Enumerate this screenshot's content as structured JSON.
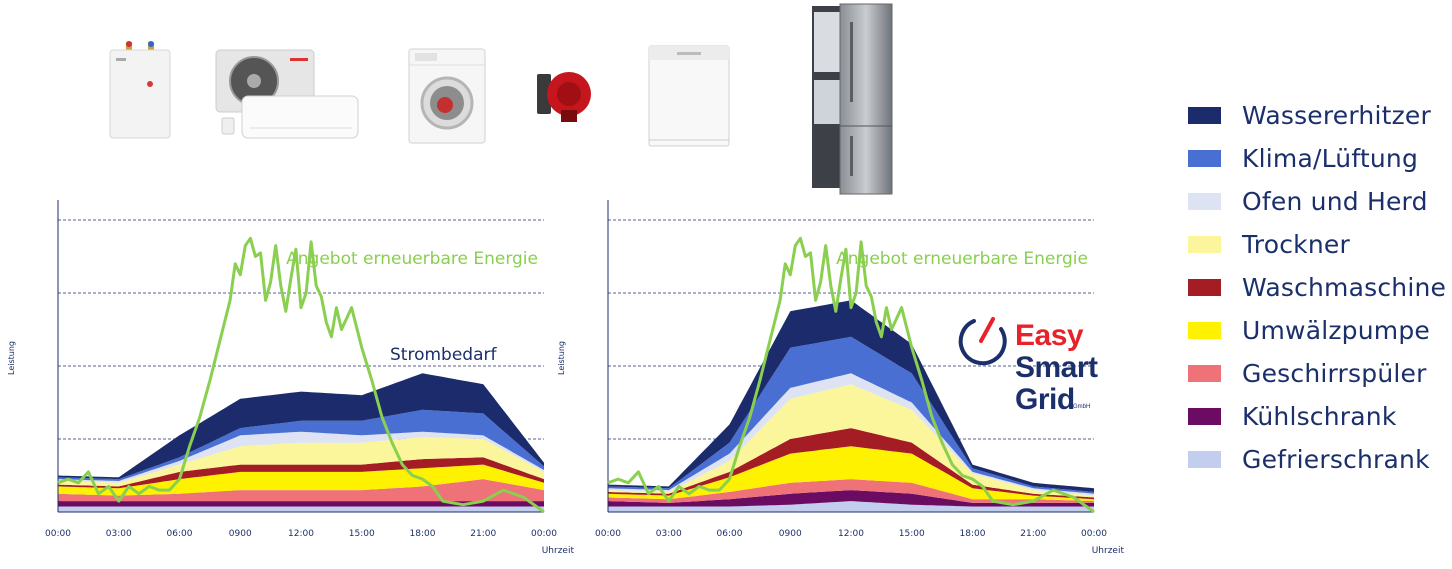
{
  "legend": [
    {
      "label": "Wassererhitzer",
      "color": "#1b2b6b"
    },
    {
      "label": "Klima/Lüftung",
      "color": "#4a6fd2"
    },
    {
      "label": "Ofen und Herd",
      "color": "#dde3f3"
    },
    {
      "label": "Trockner",
      "color": "#fbf59c"
    },
    {
      "label": "Waschmaschine",
      "color": "#a51d24"
    },
    {
      "label": "Umwälzpumpe",
      "color": "#fff200"
    },
    {
      "label": "Geschirrspüler",
      "color": "#ee7278"
    },
    {
      "label": "Kühlschrank",
      "color": "#6b0b62"
    },
    {
      "label": "Gefrierschrank",
      "color": "#c3cdee"
    }
  ],
  "appliances": [
    {
      "name": "Wassererhitzer",
      "icon": "water-heater-icon"
    },
    {
      "name": "Klima/Lüftung",
      "icon": "air-conditioner-icon"
    },
    {
      "name": "Waschmaschine",
      "icon": "washing-machine-icon"
    },
    {
      "name": "Umwälzpumpe",
      "icon": "circulation-pump-icon"
    },
    {
      "name": "Geschirrspüler",
      "icon": "dishwasher-icon"
    },
    {
      "name": "Kühlschrank",
      "icon": "fridge-freezer-icon"
    }
  ],
  "logo": {
    "line1": "Easy",
    "line2": "Smart",
    "line3": "Grid",
    "suffix": "GmbH",
    "accent": "#e8222a",
    "dark": "#1b2f6b"
  },
  "renewable_color": "#8acf4f",
  "chart_data": [
    {
      "type": "area",
      "stacked": true,
      "ylabel": "Leistung",
      "xlabel": "Uhrzeit",
      "x_ticks": [
        "00:00",
        "03:00",
        "06:00",
        "0900",
        "12:00",
        "15:00",
        "18:00",
        "21:00",
        "00:00"
      ],
      "x_hours": [
        0,
        3,
        6,
        9,
        12,
        15,
        18,
        21,
        24
      ],
      "ylim": [
        0,
        8
      ],
      "y_gridlines": [
        2,
        4,
        6,
        8
      ],
      "grid": true,
      "annotations": [
        "Angebot erneuerbare Energie",
        "Strombedarf"
      ],
      "series": [
        {
          "name": "Gefrierschrank",
          "x": [
            0,
            3,
            6,
            9,
            12,
            15,
            18,
            21,
            24
          ],
          "values": [
            0.15,
            0.15,
            0.15,
            0.15,
            0.15,
            0.15,
            0.15,
            0.15,
            0.15
          ]
        },
        {
          "name": "Kühlschrank",
          "x": [
            0,
            3,
            6,
            9,
            12,
            15,
            18,
            21,
            24
          ],
          "values": [
            0.15,
            0.15,
            0.15,
            0.15,
            0.15,
            0.15,
            0.15,
            0.15,
            0.15
          ]
        },
        {
          "name": "Geschirrspüler",
          "x": [
            0,
            3,
            6,
            9,
            12,
            15,
            18,
            21,
            24
          ],
          "values": [
            0.2,
            0.15,
            0.2,
            0.3,
            0.3,
            0.3,
            0.4,
            0.6,
            0.3
          ]
        },
        {
          "name": "Umwälzpumpe",
          "x": [
            0,
            3,
            6,
            9,
            12,
            15,
            18,
            21,
            24
          ],
          "values": [
            0.2,
            0.2,
            0.4,
            0.5,
            0.5,
            0.5,
            0.5,
            0.4,
            0.2
          ]
        },
        {
          "name": "Waschmaschine",
          "x": [
            0,
            3,
            6,
            9,
            12,
            15,
            18,
            21,
            24
          ],
          "values": [
            0.05,
            0.05,
            0.2,
            0.2,
            0.2,
            0.2,
            0.25,
            0.2,
            0.1
          ]
        },
        {
          "name": "Trockner",
          "x": [
            0,
            3,
            6,
            9,
            12,
            15,
            18,
            21,
            24
          ],
          "values": [
            0.1,
            0.1,
            0.2,
            0.5,
            0.6,
            0.6,
            0.6,
            0.5,
            0.2
          ]
        },
        {
          "name": "Ofen und Herd",
          "x": [
            0,
            3,
            6,
            9,
            12,
            15,
            18,
            21,
            24
          ],
          "values": [
            0.05,
            0.05,
            0.1,
            0.3,
            0.3,
            0.2,
            0.15,
            0.1,
            0.05
          ]
        },
        {
          "name": "Klima/Lüftung",
          "x": [
            0,
            3,
            6,
            9,
            12,
            15,
            18,
            21,
            24
          ],
          "values": [
            0.05,
            0.05,
            0.1,
            0.2,
            0.3,
            0.4,
            0.6,
            0.6,
            0.1
          ]
        },
        {
          "name": "Wassererhitzer",
          "x": [
            0,
            3,
            6,
            9,
            12,
            15,
            18,
            21,
            24
          ],
          "values": [
            0.05,
            0.05,
            0.6,
            0.8,
            0.8,
            0.7,
            1.0,
            0.8,
            0.1
          ]
        }
      ],
      "renewable": {
        "name": "Angebot erneuerbare Energie",
        "x": [
          0,
          0.5,
          1,
          1.5,
          2,
          2.5,
          3,
          3.5,
          4,
          4.5,
          5,
          5.5,
          6,
          6.5,
          7,
          7.5,
          8,
          8.5,
          8.75,
          9,
          9.25,
          9.5,
          9.75,
          10,
          10.25,
          10.5,
          10.75,
          11,
          11.25,
          11.5,
          11.75,
          12,
          12.25,
          12.5,
          12.75,
          13,
          13.25,
          13.5,
          13.75,
          14,
          14.5,
          15,
          15.5,
          16,
          16.5,
          17,
          17.5,
          18,
          18.5,
          19,
          20,
          21,
          22,
          23,
          24
        ],
        "values": [
          0.8,
          0.9,
          0.8,
          1.1,
          0.5,
          0.7,
          0.3,
          0.7,
          0.5,
          0.7,
          0.6,
          0.6,
          0.9,
          1.8,
          2.6,
          3.6,
          4.7,
          5.8,
          6.8,
          6.5,
          7.3,
          7.5,
          7.0,
          7.1,
          5.8,
          6.3,
          7.3,
          6.2,
          5.5,
          6.4,
          7.2,
          5.6,
          6.0,
          7.4,
          6.2,
          5.9,
          5.2,
          4.8,
          5.6,
          5.0,
          5.6,
          4.5,
          3.6,
          2.6,
          1.9,
          1.3,
          1.0,
          0.9,
          0.7,
          0.3,
          0.2,
          0.3,
          0.6,
          0.4,
          0.0
        ]
      }
    },
    {
      "type": "area",
      "stacked": true,
      "ylabel": "Leistung",
      "xlabel": "Uhrzeit",
      "x_ticks": [
        "00:00",
        "03:00",
        "06:00",
        "0900",
        "12:00",
        "15:00",
        "18:00",
        "21:00",
        "00:00"
      ],
      "x_hours": [
        0,
        3,
        6,
        9,
        12,
        15,
        18,
        21,
        24
      ],
      "ylim": [
        0,
        8
      ],
      "y_gridlines": [
        2,
        4,
        6,
        8
      ],
      "grid": true,
      "annotations": [
        "Angebot erneuerbare Energie"
      ],
      "series": [
        {
          "name": "Gefrierschrank",
          "x": [
            0,
            3,
            6,
            9,
            12,
            15,
            18,
            21,
            24
          ],
          "values": [
            0.15,
            0.15,
            0.15,
            0.2,
            0.3,
            0.2,
            0.15,
            0.15,
            0.15
          ]
        },
        {
          "name": "Kühlschrank",
          "x": [
            0,
            3,
            6,
            9,
            12,
            15,
            18,
            21,
            24
          ],
          "values": [
            0.15,
            0.1,
            0.2,
            0.3,
            0.3,
            0.3,
            0.1,
            0.1,
            0.1
          ]
        },
        {
          "name": "Geschirrspüler",
          "x": [
            0,
            3,
            6,
            9,
            12,
            15,
            18,
            21,
            24
          ],
          "values": [
            0.1,
            0.1,
            0.2,
            0.3,
            0.3,
            0.3,
            0.1,
            0.1,
            0.05
          ]
        },
        {
          "name": "Umwälzpumpe",
          "x": [
            0,
            3,
            6,
            9,
            12,
            15,
            18,
            21,
            24
          ],
          "values": [
            0.1,
            0.1,
            0.4,
            0.8,
            0.9,
            0.8,
            0.3,
            0.1,
            0.05
          ]
        },
        {
          "name": "Waschmaschine",
          "x": [
            0,
            3,
            6,
            9,
            12,
            15,
            18,
            21,
            24
          ],
          "values": [
            0.05,
            0.05,
            0.15,
            0.4,
            0.5,
            0.3,
            0.1,
            0.05,
            0.05
          ]
        },
        {
          "name": "Trockner",
          "x": [
            0,
            3,
            6,
            9,
            12,
            15,
            18,
            21,
            24
          ],
          "values": [
            0.05,
            0.05,
            0.3,
            1.1,
            1.2,
            0.9,
            0.3,
            0.1,
            0.05
          ]
        },
        {
          "name": "Ofen und Herd",
          "x": [
            0,
            3,
            6,
            9,
            12,
            15,
            18,
            21,
            24
          ],
          "values": [
            0.05,
            0.05,
            0.2,
            0.3,
            0.3,
            0.2,
            0.05,
            0.05,
            0.05
          ]
        },
        {
          "name": "Klima/Lüftung",
          "x": [
            0,
            3,
            6,
            9,
            12,
            15,
            18,
            21,
            24
          ],
          "values": [
            0.05,
            0.05,
            0.3,
            1.1,
            1.0,
            0.8,
            0.1,
            0.05,
            0.05
          ]
        },
        {
          "name": "Wassererhitzer",
          "x": [
            0,
            3,
            6,
            9,
            12,
            15,
            18,
            21,
            24
          ],
          "values": [
            0.05,
            0.05,
            0.5,
            1.0,
            1.0,
            0.8,
            0.1,
            0.1,
            0.1
          ]
        }
      ],
      "renewable": {
        "name": "Angebot erneuerbare Energie",
        "x": [
          0,
          0.5,
          1,
          1.5,
          2,
          2.5,
          3,
          3.5,
          4,
          4.5,
          5,
          5.5,
          6,
          6.5,
          7,
          7.5,
          8,
          8.5,
          8.75,
          9,
          9.25,
          9.5,
          9.75,
          10,
          10.25,
          10.5,
          10.75,
          11,
          11.25,
          11.5,
          11.75,
          12,
          12.25,
          12.5,
          12.75,
          13,
          13.25,
          13.5,
          13.75,
          14,
          14.5,
          15,
          15.5,
          16,
          16.5,
          17,
          17.5,
          18,
          18.5,
          19,
          20,
          21,
          22,
          23,
          24
        ],
        "values": [
          0.8,
          0.9,
          0.8,
          1.1,
          0.5,
          0.7,
          0.3,
          0.7,
          0.5,
          0.7,
          0.6,
          0.6,
          0.9,
          1.8,
          2.6,
          3.6,
          4.7,
          5.8,
          6.8,
          6.5,
          7.3,
          7.5,
          7.0,
          7.1,
          5.8,
          6.3,
          7.3,
          6.2,
          5.5,
          6.4,
          7.2,
          5.6,
          6.0,
          7.4,
          6.2,
          5.9,
          5.2,
          4.8,
          5.6,
          5.0,
          5.6,
          4.5,
          3.6,
          2.6,
          1.9,
          1.3,
          1.0,
          0.9,
          0.7,
          0.3,
          0.2,
          0.3,
          0.6,
          0.4,
          0.0
        ]
      }
    }
  ]
}
